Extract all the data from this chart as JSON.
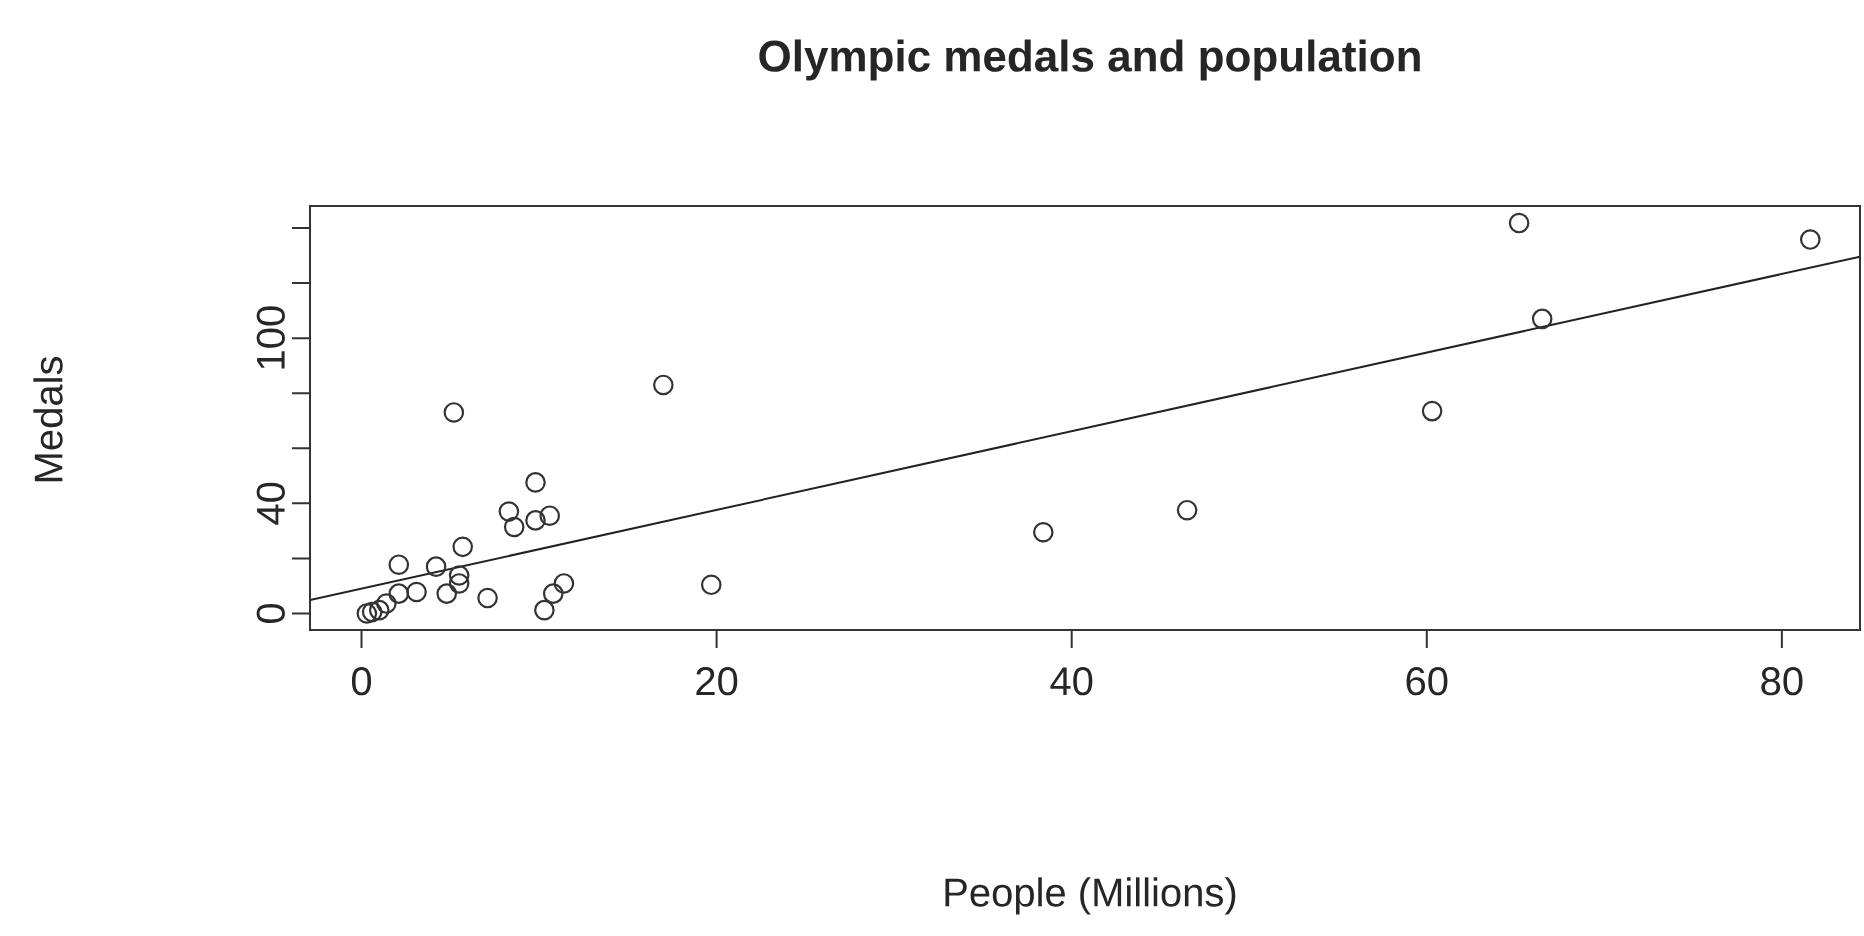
{
  "chart_data": {
    "type": "scatter",
    "title": "Olympic medals and population",
    "xlabel": "People (Millions)",
    "ylabel": "Medals",
    "xlim": [
      -2.9,
      84.4
    ],
    "ylim": [
      -6,
      148
    ],
    "xticks": [
      0,
      20,
      40,
      60,
      80
    ],
    "yticks": [
      0,
      {
        "value": 20,
        "label": null
      },
      40,
      {
        "value": 60,
        "label": null
      },
      {
        "value": 80,
        "label": null
      },
      100,
      {
        "value": 120,
        "label": null
      },
      {
        "value": 140,
        "label": null
      }
    ],
    "series": [
      {
        "color": "#333333",
        "marker": "circle",
        "x": [
          5.2,
          17.0,
          9.8,
          8.3,
          8.6,
          10.6,
          9.8,
          5.7,
          2.1,
          4.2,
          5.5,
          5.5,
          4.8,
          3.1,
          7.1,
          11.4,
          10.8,
          10.3,
          19.7,
          2.1,
          1.4,
          0.6,
          0.3,
          1.0,
          65.2,
          81.6,
          66.5,
          60.3,
          46.5,
          38.4
        ],
        "values": [
          73,
          83,
          47.6,
          37,
          31.4,
          35.5,
          33.8,
          24.2,
          17.7,
          17,
          13.8,
          10.9,
          7.2,
          7.8,
          5.6,
          10.9,
          7.2,
          1.2,
          10.4,
          7.2,
          3.6,
          0.5,
          0,
          1.2,
          141.8,
          135.8,
          107,
          73.5,
          37.5,
          29.5
        ]
      },
      {
        "type": "line",
        "color": "#222222",
        "marker": "none",
        "x": [
          -2.9,
          84.4
        ],
        "values": [
          4.9,
          129.6
        ]
      }
    ]
  }
}
